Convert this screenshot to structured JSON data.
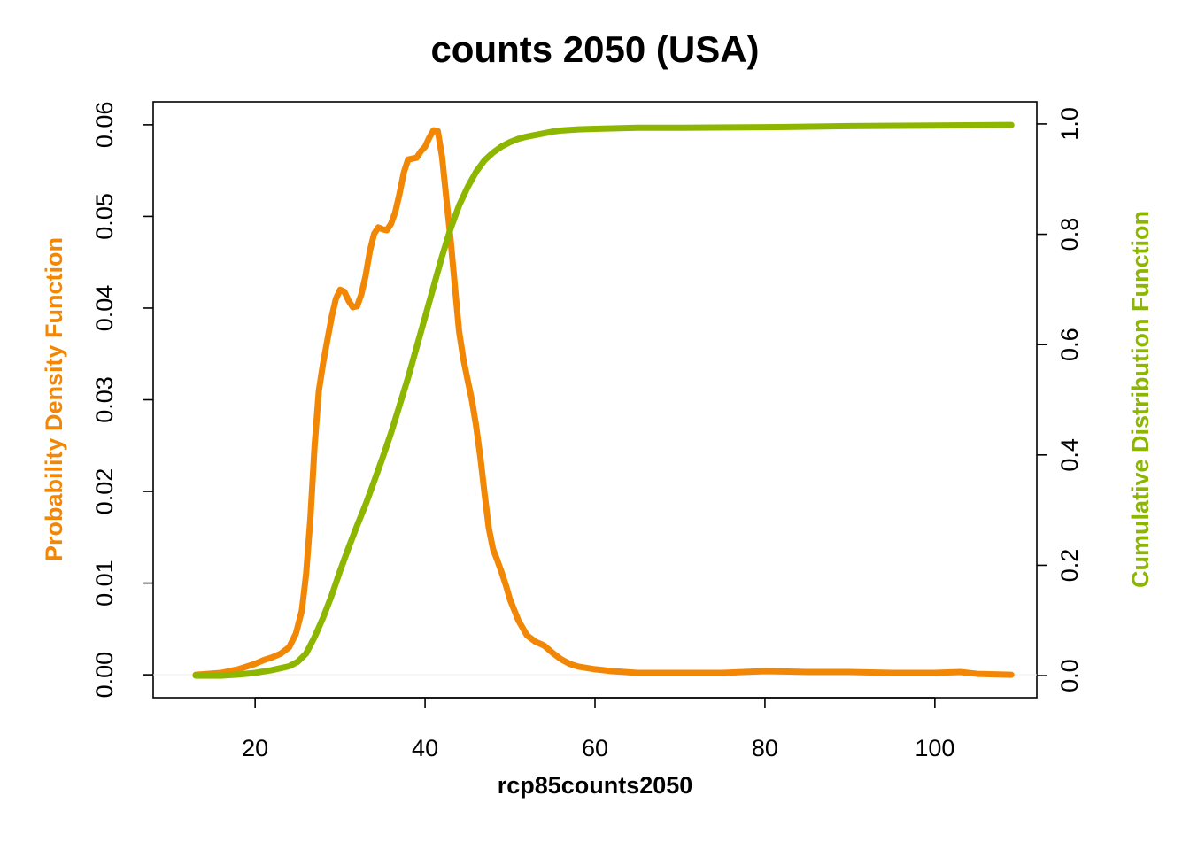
{
  "chart_data": {
    "type": "line",
    "title": "counts 2050 (USA)",
    "xlabel": "rcp85counts2050",
    "ylabel_left": "Probability Density Function",
    "ylabel_right": "Cumulative Distribution Function",
    "xlim": [
      8,
      112
    ],
    "ylim_left": [
      -0.0025,
      0.0625
    ],
    "ylim_right": [
      -0.04,
      1.04
    ],
    "x_ticks": [
      20,
      40,
      60,
      80,
      100
    ],
    "y_ticks_left": [
      "0.00",
      "0.01",
      "0.02",
      "0.03",
      "0.04",
      "0.05",
      "0.06"
    ],
    "y_ticks_right": [
      "0.0",
      "0.2",
      "0.4",
      "0.6",
      "0.8",
      "1.0"
    ],
    "grid": false,
    "legend": "none",
    "colors": {
      "pdf": "#f28705",
      "cdf": "#8db600"
    },
    "series": [
      {
        "axis": "left",
        "points": [
          [
            13,
            0.0
          ],
          [
            16,
            0.0002
          ],
          [
            18,
            0.0006
          ],
          [
            20,
            0.0012
          ],
          [
            21,
            0.0016
          ],
          [
            22,
            0.0019
          ],
          [
            23,
            0.0023
          ],
          [
            24,
            0.003
          ],
          [
            24.8,
            0.0045
          ],
          [
            25.5,
            0.007
          ],
          [
            26,
            0.011
          ],
          [
            26.5,
            0.017
          ],
          [
            27,
            0.025
          ],
          [
            27.5,
            0.031
          ],
          [
            28,
            0.034
          ],
          [
            28.5,
            0.0365
          ],
          [
            29,
            0.039
          ],
          [
            29.5,
            0.041
          ],
          [
            30,
            0.042
          ],
          [
            30.5,
            0.0418
          ],
          [
            31,
            0.0408
          ],
          [
            31.5,
            0.0401
          ],
          [
            32,
            0.0402
          ],
          [
            32.5,
            0.0415
          ],
          [
            33,
            0.0435
          ],
          [
            33.5,
            0.0462
          ],
          [
            34,
            0.0481
          ],
          [
            34.5,
            0.0488
          ],
          [
            35,
            0.0486
          ],
          [
            35.5,
            0.0485
          ],
          [
            36,
            0.0492
          ],
          [
            36.5,
            0.0505
          ],
          [
            37,
            0.0525
          ],
          [
            37.5,
            0.0548
          ],
          [
            38,
            0.0562
          ],
          [
            38.5,
            0.0563
          ],
          [
            39,
            0.0564
          ],
          [
            39.5,
            0.0571
          ],
          [
            40,
            0.0576
          ],
          [
            40.5,
            0.0586
          ],
          [
            41,
            0.0594
          ],
          [
            41.5,
            0.0593
          ],
          [
            42,
            0.0565
          ],
          [
            42.5,
            0.052
          ],
          [
            43,
            0.0475
          ],
          [
            43.5,
            0.0425
          ],
          [
            44,
            0.0375
          ],
          [
            44.5,
            0.0345
          ],
          [
            45,
            0.0322
          ],
          [
            45.5,
            0.03
          ],
          [
            46,
            0.0272
          ],
          [
            46.5,
            0.0238
          ],
          [
            47,
            0.0198
          ],
          [
            47.5,
            0.016
          ],
          [
            48,
            0.0137
          ],
          [
            48.5,
            0.0125
          ],
          [
            49,
            0.0112
          ],
          [
            49.5,
            0.0098
          ],
          [
            50,
            0.0082
          ],
          [
            51,
            0.0059
          ],
          [
            52,
            0.0043
          ],
          [
            53,
            0.0036
          ],
          [
            54,
            0.0032
          ],
          [
            55,
            0.0024
          ],
          [
            56,
            0.0017
          ],
          [
            57,
            0.0012
          ],
          [
            58,
            0.0009
          ],
          [
            60,
            0.0006
          ],
          [
            62,
            0.0004
          ],
          [
            65,
            0.0002
          ],
          [
            70,
            0.0002
          ],
          [
            75,
            0.0002
          ],
          [
            80,
            0.0004
          ],
          [
            85,
            0.0003
          ],
          [
            90,
            0.0003
          ],
          [
            95,
            0.0002
          ],
          [
            100,
            0.0002
          ],
          [
            103,
            0.0003
          ],
          [
            105,
            0.0001
          ],
          [
            109,
            0.0
          ]
        ]
      },
      {
        "axis": "right",
        "points": [
          [
            13,
            0.0
          ],
          [
            16,
            0.0
          ],
          [
            18,
            0.002
          ],
          [
            20,
            0.005
          ],
          [
            22,
            0.01
          ],
          [
            24,
            0.017
          ],
          [
            25,
            0.025
          ],
          [
            26,
            0.04
          ],
          [
            27,
            0.07
          ],
          [
            28,
            0.105
          ],
          [
            29,
            0.145
          ],
          [
            30,
            0.19
          ],
          [
            31,
            0.232
          ],
          [
            32,
            0.272
          ],
          [
            33,
            0.31
          ],
          [
            34,
            0.352
          ],
          [
            35,
            0.395
          ],
          [
            36,
            0.44
          ],
          [
            37,
            0.49
          ],
          [
            38,
            0.54
          ],
          [
            39,
            0.595
          ],
          [
            40,
            0.65
          ],
          [
            41,
            0.705
          ],
          [
            42,
            0.76
          ],
          [
            43,
            0.81
          ],
          [
            44,
            0.852
          ],
          [
            45,
            0.885
          ],
          [
            46,
            0.913
          ],
          [
            47,
            0.934
          ],
          [
            48,
            0.948
          ],
          [
            49,
            0.959
          ],
          [
            50,
            0.967
          ],
          [
            51,
            0.973
          ],
          [
            52,
            0.977
          ],
          [
            53,
            0.98
          ],
          [
            54,
            0.983
          ],
          [
            55,
            0.986
          ],
          [
            56,
            0.988
          ],
          [
            58,
            0.99
          ],
          [
            60,
            0.991
          ],
          [
            65,
            0.993
          ],
          [
            70,
            0.993
          ],
          [
            80,
            0.994
          ],
          [
            90,
            0.996
          ],
          [
            100,
            0.997
          ],
          [
            109,
            0.998
          ]
        ]
      }
    ]
  }
}
